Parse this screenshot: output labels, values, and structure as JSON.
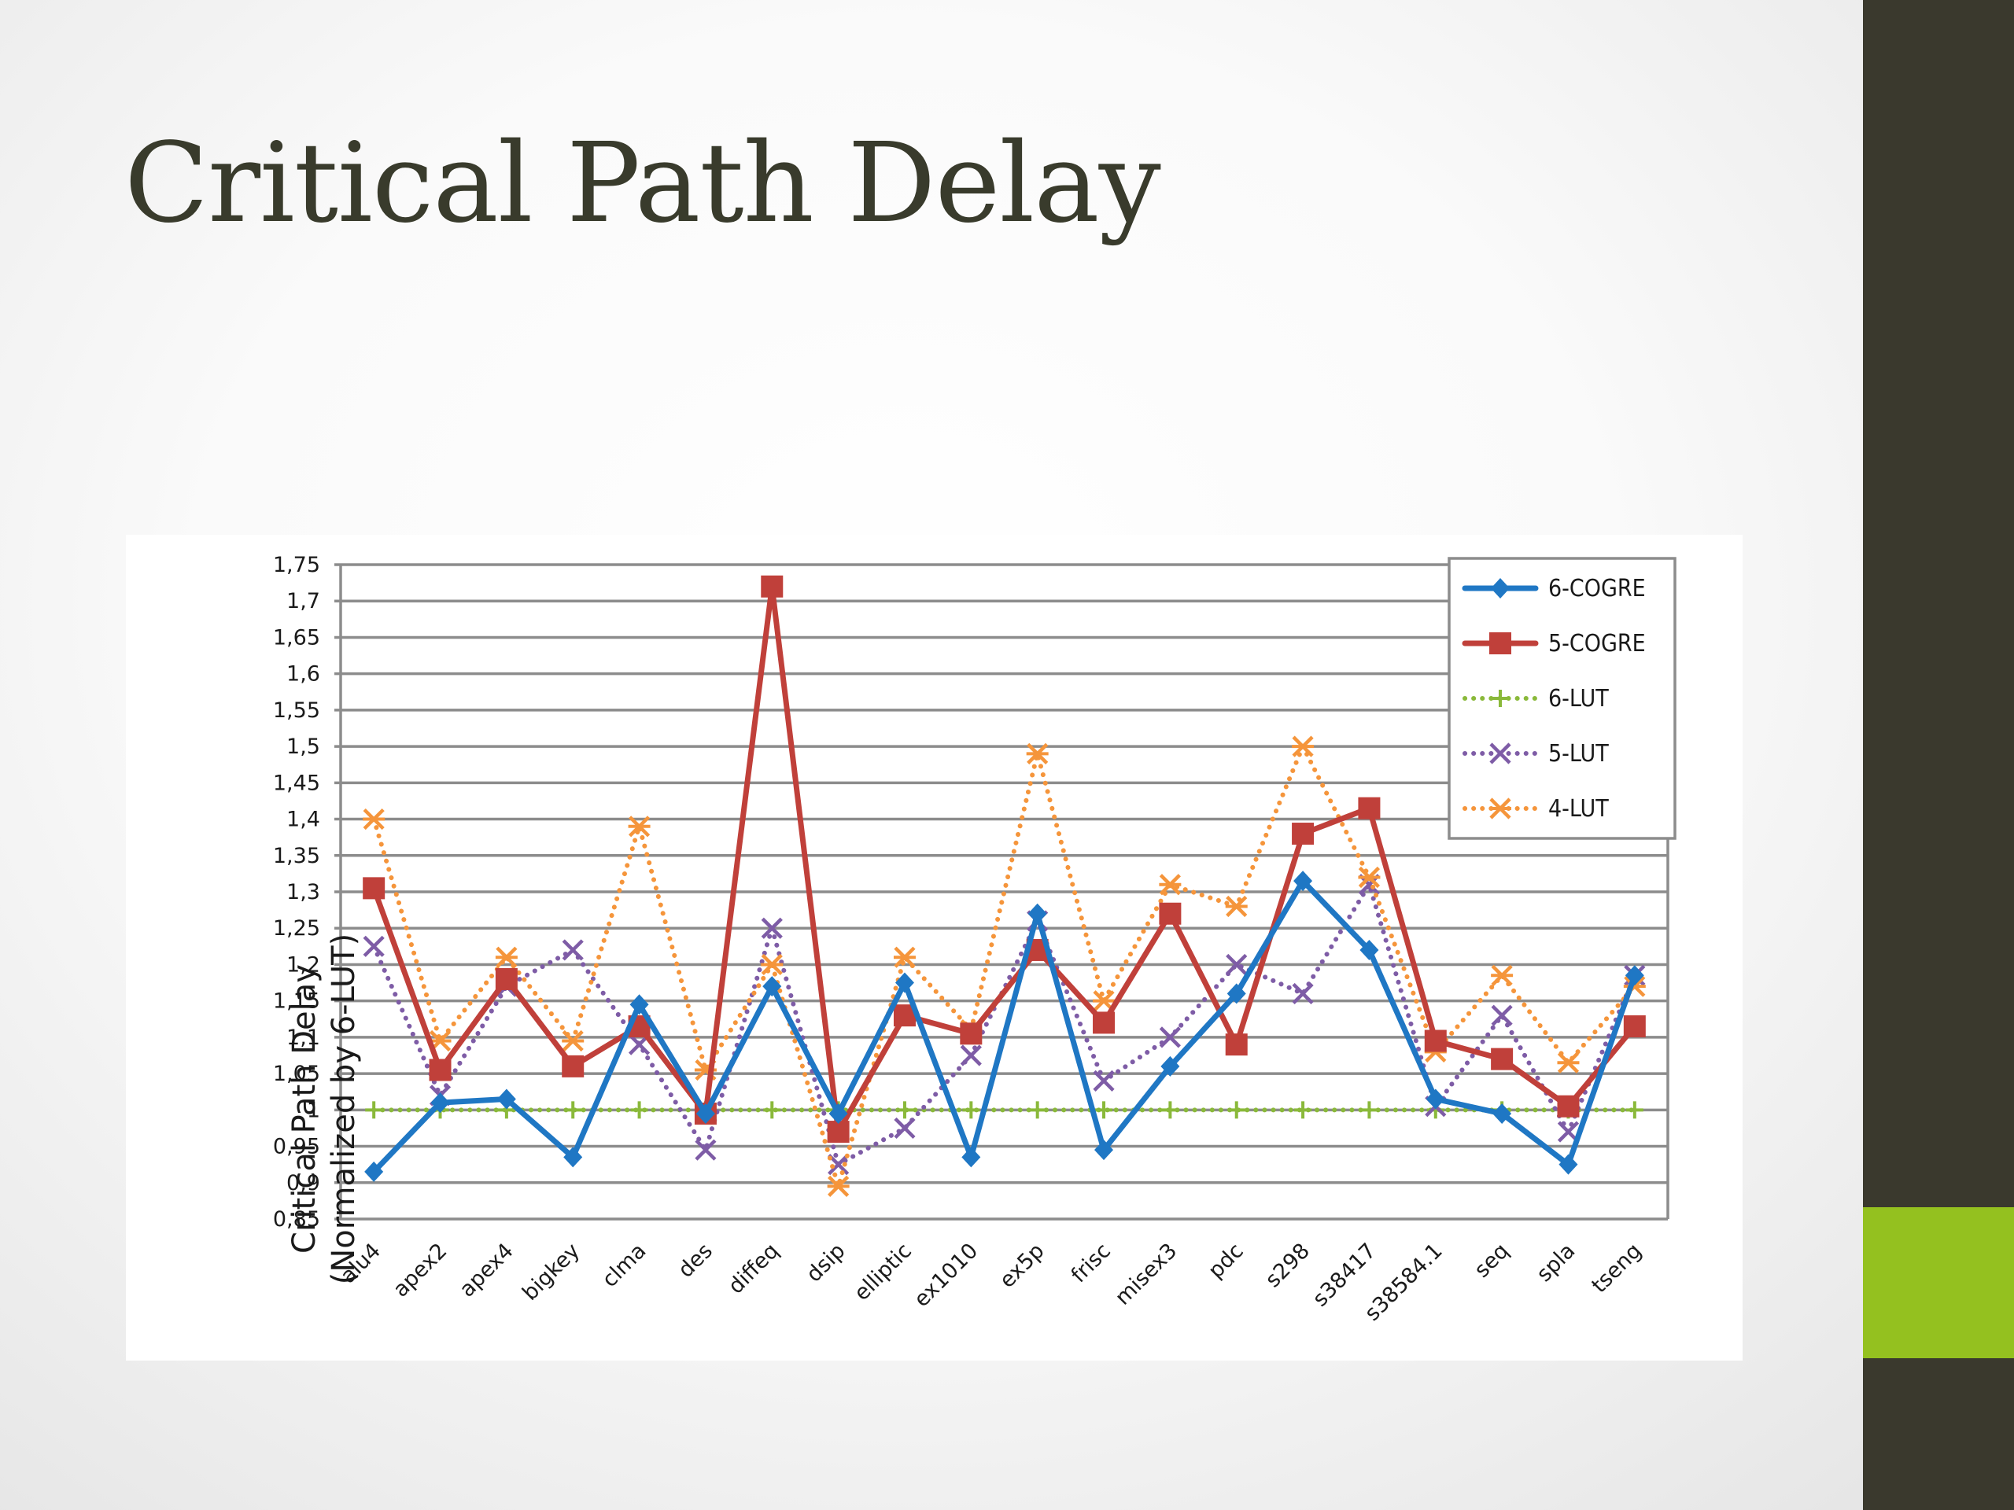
{
  "slide": {
    "title": "Critical Path Delay",
    "colors": {
      "sidebar": "#3a392d",
      "accent": "#94c11f",
      "title": "#393b2c"
    }
  },
  "chart_data": {
    "type": "line",
    "ylabel": [
      "Critical Path Delay",
      "(Normalized by 6-LUT)"
    ],
    "xlabel": "",
    "ylim": [
      0.85,
      1.75
    ],
    "ytick_step": 0.05,
    "ytick_labels": [
      "0,85",
      "0,9",
      "0,95",
      "1",
      "1,05",
      "1,1",
      "1,15",
      "1,2",
      "1,25",
      "1,3",
      "1,35",
      "1,4",
      "1,45",
      "1,5",
      "1,55",
      "1,6",
      "1,65",
      "1,7",
      "1,75"
    ],
    "grid": true,
    "legend_position": "top-right",
    "categories": [
      "alu4",
      "apex2",
      "apex4",
      "bigkey",
      "clma",
      "des",
      "diffeq",
      "dsip",
      "elliptic",
      "ex1010",
      "ex5p",
      "frisc",
      "misex3",
      "pdc",
      "s298",
      "s38417",
      "s38584.1",
      "seq",
      "spla",
      "tseng"
    ],
    "series": [
      {
        "name": "6-COGRE",
        "color": "#1f77c4",
        "line": "solid",
        "marker": "diamond",
        "values": [
          0.915,
          1.01,
          1.015,
          0.935,
          1.145,
          0.995,
          1.17,
          0.995,
          1.175,
          0.935,
          1.27,
          0.945,
          1.06,
          1.16,
          1.315,
          1.22,
          1.015,
          0.995,
          0.925,
          1.185
        ]
      },
      {
        "name": "5-COGRE",
        "color": "#c0403a",
        "line": "solid",
        "marker": "square",
        "values": [
          1.305,
          1.055,
          1.18,
          1.06,
          1.115,
          0.995,
          1.72,
          0.97,
          1.13,
          1.105,
          1.22,
          1.12,
          1.27,
          1.09,
          1.38,
          1.415,
          1.095,
          1.07,
          1.005,
          1.115
        ]
      },
      {
        "name": "6-LUT",
        "color": "#8ab93a",
        "line": "dotted",
        "marker": "plus",
        "values": [
          1.0,
          1.0,
          1.0,
          1.0,
          1.0,
          1.0,
          1.0,
          1.0,
          1.0,
          1.0,
          1.0,
          1.0,
          1.0,
          1.0,
          1.0,
          1.0,
          1.0,
          1.0,
          1.0,
          1.0
        ]
      },
      {
        "name": "5-LUT",
        "color": "#7e5ca6",
        "line": "dotted",
        "marker": "x",
        "values": [
          1.225,
          1.02,
          1.17,
          1.22,
          1.09,
          0.945,
          1.25,
          0.925,
          0.975,
          1.075,
          1.26,
          1.04,
          1.1,
          1.2,
          1.16,
          1.31,
          1.005,
          1.13,
          0.97,
          1.185
        ]
      },
      {
        "name": "4-LUT",
        "color": "#f5953b",
        "line": "dotted",
        "marker": "asterisk",
        "values": [
          1.4,
          1.095,
          1.21,
          1.095,
          1.39,
          1.055,
          1.2,
          0.895,
          1.21,
          1.11,
          1.49,
          1.15,
          1.31,
          1.28,
          1.5,
          1.32,
          1.08,
          1.185,
          1.065,
          1.17
        ]
      }
    ]
  }
}
